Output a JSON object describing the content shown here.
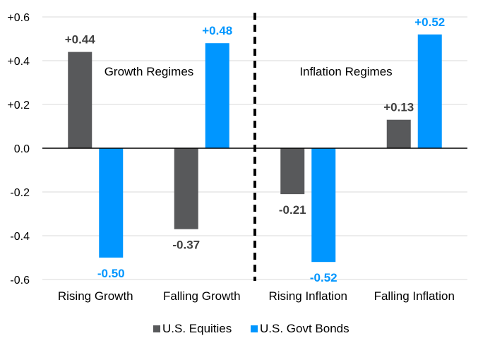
{
  "chart_data": {
    "type": "bar",
    "categories": [
      "Rising Growth",
      "Falling Growth",
      "Rising Inflation",
      "Falling Inflation"
    ],
    "series": [
      {
        "name": "U.S. Equities",
        "color": "#58595b",
        "values": [
          0.44,
          -0.37,
          -0.21,
          0.13
        ],
        "labels": [
          "+0.44",
          "-0.37",
          "-0.21",
          "+0.13"
        ]
      },
      {
        "name": "U.S. Govt Bonds",
        "color": "#0096ff",
        "values": [
          -0.5,
          0.48,
          -0.52,
          0.52
        ],
        "labels": [
          "-0.50",
          "+0.48",
          "-0.52",
          "+0.52"
        ]
      }
    ],
    "ylim": [
      -0.6,
      0.6
    ],
    "yticks": [
      0.6,
      0.4,
      0.2,
      0.0,
      -0.2,
      -0.4,
      -0.6
    ],
    "ytick_labels": [
      "+0.6",
      "+0.4",
      "+0.2",
      "0.0",
      "-0.2",
      "-0.4",
      "-0.6"
    ],
    "grid": true,
    "legend": "bottom",
    "annotations": [
      "Growth Regimes",
      "Inflation Regimes"
    ],
    "divider": "dashed vertical line between Falling Growth and Rising Inflation"
  }
}
